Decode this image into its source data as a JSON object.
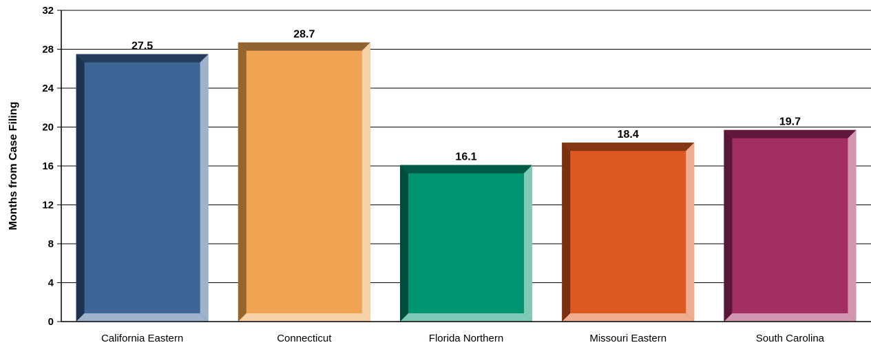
{
  "chart_data": {
    "type": "bar",
    "title": "",
    "xlabel": "",
    "ylabel": "Months from Case Filing",
    "ylim": [
      0,
      32
    ],
    "yticks": [
      0,
      4,
      8,
      12,
      16,
      20,
      24,
      28,
      32
    ],
    "grid": true,
    "style": "3d-beveled",
    "categories": [
      "California Eastern",
      "Connecticut",
      "Florida Northern",
      "Missouri Eastern",
      "South Carolina"
    ],
    "values": [
      27.5,
      28.7,
      16.1,
      18.4,
      19.7
    ],
    "data_labels": [
      "27.5",
      "28.7",
      "16.1",
      "18.4",
      "19.7"
    ],
    "colors": {
      "face": [
        "#3D6596",
        "#F0A352",
        "#009470",
        "#DD5922",
        "#A32E62"
      ],
      "top": [
        "#253D5B",
        "#8F6232",
        "#005944",
        "#843515",
        "#62183B"
      ],
      "left": [
        "#1E3350",
        "#94652F",
        "#004D3B",
        "#7A3012",
        "#5A1638"
      ],
      "right": [
        "#9EB2CB",
        "#F7D1A8",
        "#7FC9B7",
        "#EEAC90",
        "#D197B0"
      ],
      "bottom": [
        "#9EB2CB",
        "#F7D1A8",
        "#7FC9B7",
        "#EEAC90",
        "#D197B0"
      ]
    }
  }
}
